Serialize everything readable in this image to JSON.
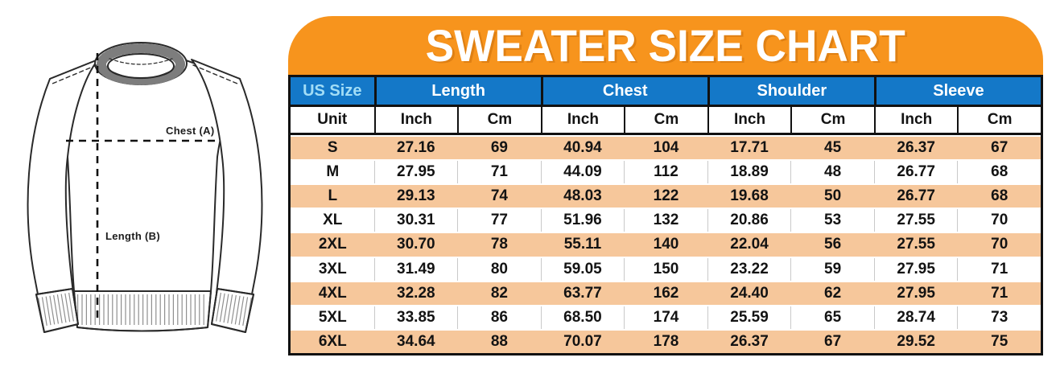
{
  "title": "SWEATER SIZE CHART",
  "diagram": {
    "chest_label": "Chest (A)",
    "length_label": "Length (B)"
  },
  "colors": {
    "banner_orange": "#F7941D",
    "header_blue": "#1478C8",
    "row_peach": "#F6C79B",
    "us_size_text": "#A2DDF6",
    "border_black": "#111111"
  },
  "chart_data": {
    "type": "table",
    "title": "SWEATER SIZE CHART",
    "column_groups": [
      {
        "label": "US Size",
        "span": 1
      },
      {
        "label": "Length",
        "span": 2
      },
      {
        "label": "Chest",
        "span": 2
      },
      {
        "label": "Shoulder",
        "span": 2
      },
      {
        "label": "Sleeve",
        "span": 2
      }
    ],
    "columns": [
      "Unit",
      "Inch",
      "Cm",
      "Inch",
      "Cm",
      "Inch",
      "Cm",
      "Inch",
      "Cm"
    ],
    "rows": [
      [
        "S",
        "27.16",
        "69",
        "40.94",
        "104",
        "17.71",
        "45",
        "26.37",
        "67"
      ],
      [
        "M",
        "27.95",
        "71",
        "44.09",
        "112",
        "18.89",
        "48",
        "26.77",
        "68"
      ],
      [
        "L",
        "29.13",
        "74",
        "48.03",
        "122",
        "19.68",
        "50",
        "26.77",
        "68"
      ],
      [
        "XL",
        "30.31",
        "77",
        "51.96",
        "132",
        "20.86",
        "53",
        "27.55",
        "70"
      ],
      [
        "2XL",
        "30.70",
        "78",
        "55.11",
        "140",
        "22.04",
        "56",
        "27.55",
        "70"
      ],
      [
        "3XL",
        "31.49",
        "80",
        "59.05",
        "150",
        "23.22",
        "59",
        "27.95",
        "71"
      ],
      [
        "4XL",
        "32.28",
        "82",
        "63.77",
        "162",
        "24.40",
        "62",
        "27.95",
        "71"
      ],
      [
        "5XL",
        "33.85",
        "86",
        "68.50",
        "174",
        "25.59",
        "65",
        "28.74",
        "73"
      ],
      [
        "6XL",
        "34.64",
        "88",
        "70.07",
        "178",
        "26.37",
        "67",
        "29.52",
        "75"
      ]
    ]
  }
}
